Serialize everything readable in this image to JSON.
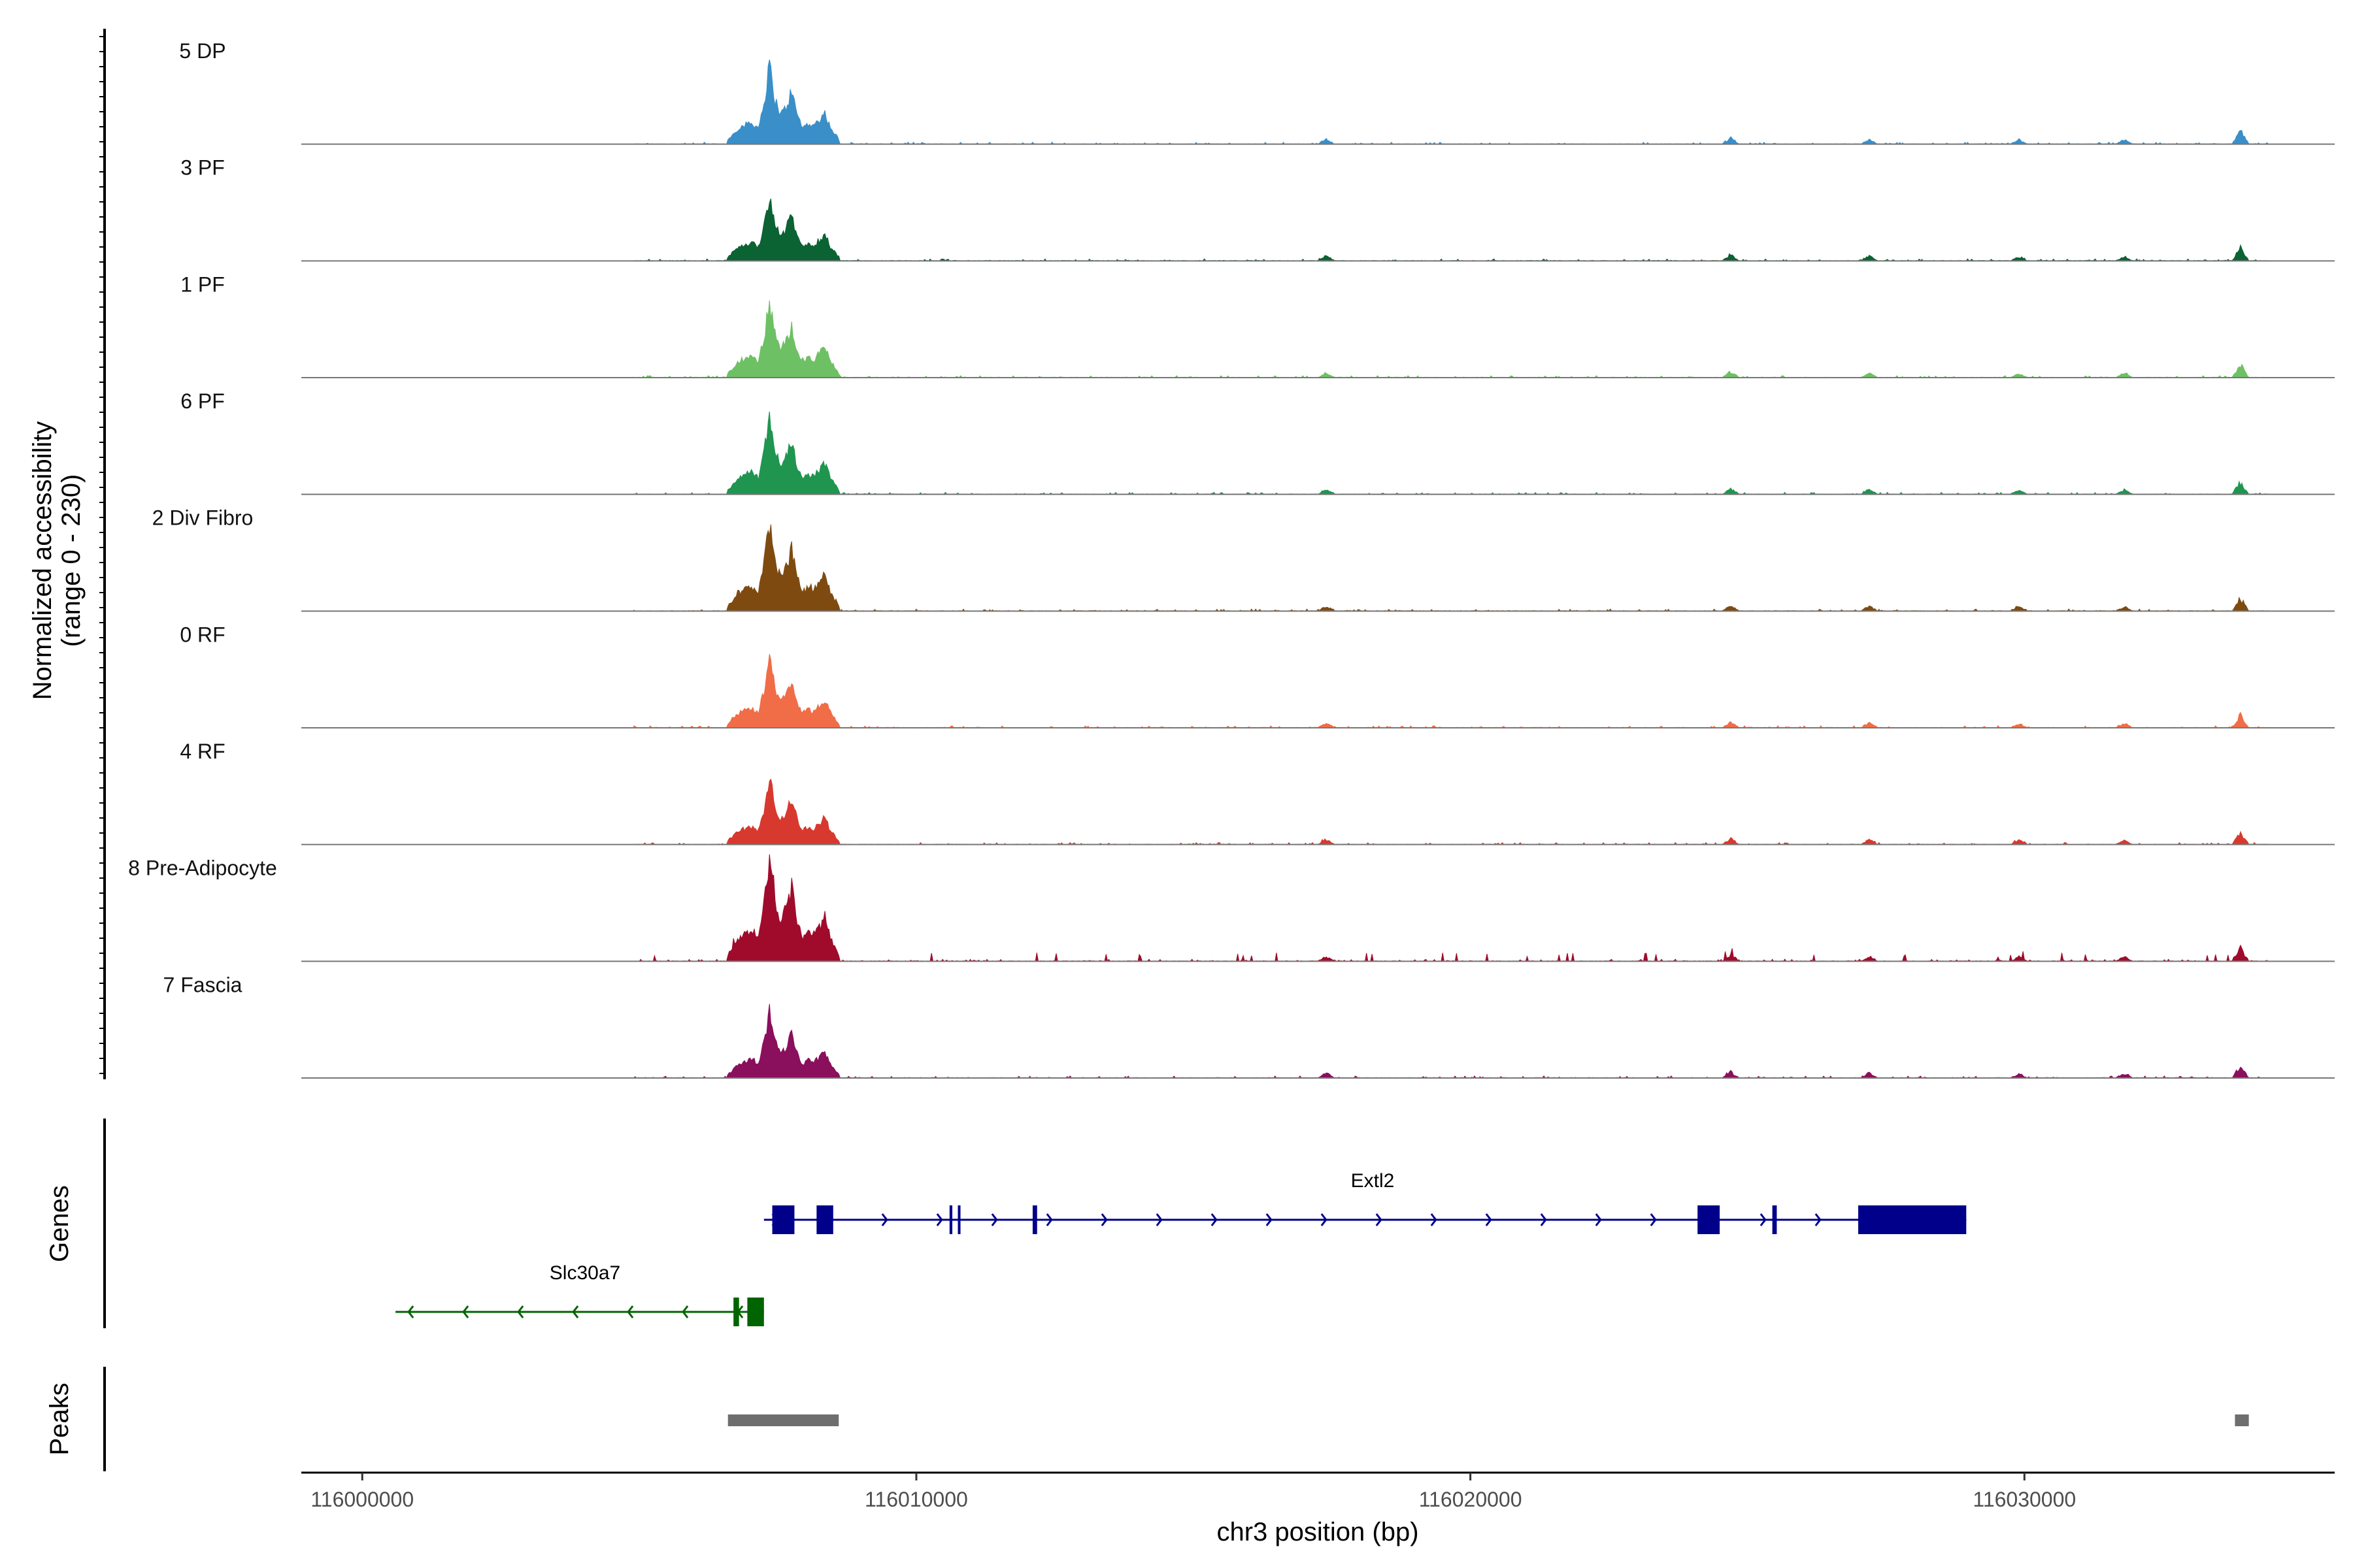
{
  "chart_data": {
    "type": "area",
    "title": "",
    "ylabel_line1": "Normalized accessibility",
    "ylabel_line2": "(range 0 - 230)",
    "y_range": [
      0,
      230
    ],
    "xlabel": "chr3 position (bp)",
    "chromosome": "chr3",
    "xlim": [
      115998900,
      116035600
    ],
    "x_ticks": [
      116000000,
      116010000,
      116020000,
      116030000
    ],
    "x_tick_labels": [
      "116000000",
      "116010000",
      "116020000",
      "116030000"
    ],
    "genes_label": "Genes",
    "peaks_label": "Peaks",
    "tracks": [
      {
        "name": "5 DP",
        "color": "#3a8fc8",
        "max": 1.0
      },
      {
        "name": "3 PF",
        "color": "#0b6233",
        "max": 0.85
      },
      {
        "name": "1 PF",
        "color": "#6ec064",
        "max": 0.97
      },
      {
        "name": "6 PF",
        "color": "#1f9550",
        "max": 1.0
      },
      {
        "name": "2 Div Fibro",
        "color": "#7f4a10",
        "max": 1.15
      },
      {
        "name": "0 RF",
        "color": "#f06d47",
        "max": 0.9
      },
      {
        "name": "4 RF",
        "color": "#d8392e",
        "max": 0.85
      },
      {
        "name": "8 Pre-Adipocyte",
        "color": "#a00b2c",
        "max": 1.4
      },
      {
        "name": "7 Fascia",
        "color": "#8a0f5c",
        "max": 0.85
      }
    ],
    "peak_shape": [
      [
        116006600,
        0.05
      ],
      [
        116006800,
        0.2
      ],
      [
        116007000,
        0.26
      ],
      [
        116007150,
        0.2
      ],
      [
        116007250,
        0.5
      ],
      [
        116007350,
        0.95
      ],
      [
        116007450,
        0.55
      ],
      [
        116007550,
        0.35
      ],
      [
        116007650,
        0.45
      ],
      [
        116007750,
        0.65
      ],
      [
        116007850,
        0.35
      ],
      [
        116007950,
        0.2
      ],
      [
        116008050,
        0.25
      ],
      [
        116008150,
        0.22
      ],
      [
        116008250,
        0.3
      ],
      [
        116008350,
        0.38
      ],
      [
        116008450,
        0.2
      ],
      [
        116008600,
        0.05
      ]
    ],
    "minor_peaks": [
      [
        116017400,
        0.06
      ],
      [
        116024700,
        0.07
      ],
      [
        116027200,
        0.06
      ],
      [
        116029900,
        0.05
      ],
      [
        116031800,
        0.05
      ],
      [
        116033900,
        0.15
      ]
    ],
    "genes": [
      {
        "name": "Extl2",
        "strand": "+",
        "color": "#00008b",
        "row": 0,
        "start": 116007250,
        "end": 116028950,
        "exons": [
          [
            116007400,
            116007800
          ],
          [
            116008200,
            116008500
          ],
          [
            116010600,
            116010650
          ],
          [
            116010750,
            116010790
          ],
          [
            116012100,
            116012180
          ],
          [
            116024100,
            116024500
          ],
          [
            116025450,
            116025530
          ],
          [
            116027000,
            116028950
          ]
        ]
      },
      {
        "name": "Slc30a7",
        "strand": "-",
        "color": "#006400",
        "row": 1,
        "start": 116000600,
        "end": 116007250,
        "exons": [
          [
            116006700,
            116006800
          ],
          [
            116006950,
            116007250
          ]
        ]
      }
    ],
    "peaks": [
      [
        116006600,
        116008600
      ],
      [
        116033800,
        116034050
      ]
    ],
    "peak_color": "#6e6e6e"
  }
}
